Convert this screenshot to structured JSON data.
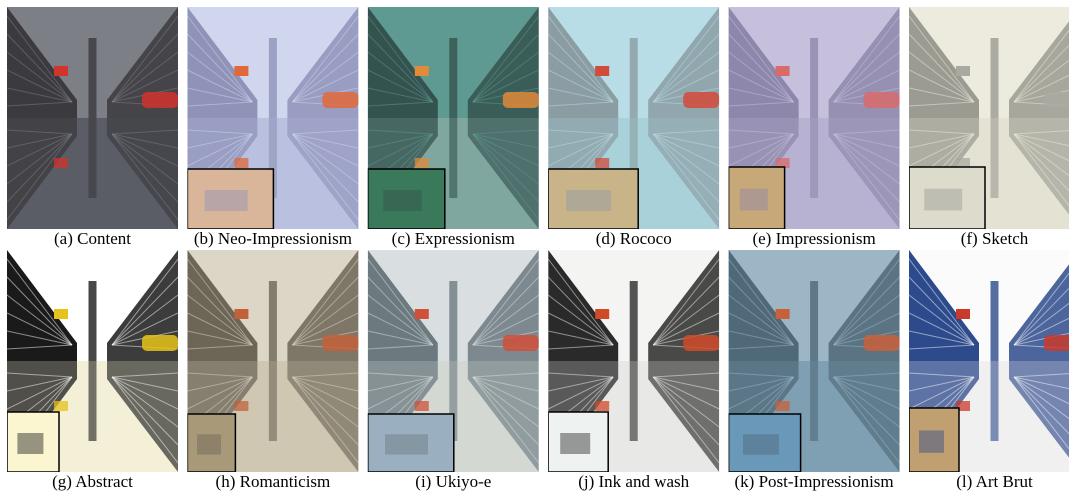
{
  "figure": {
    "panels": [
      {
        "caption": "(a) Content"
      },
      {
        "caption": "(b) Neo-Impressionism"
      },
      {
        "caption": "(c) Expressionism"
      },
      {
        "caption": "(d) Rococo"
      },
      {
        "caption": "(e) Impressionism"
      },
      {
        "caption": "(f) Sketch"
      },
      {
        "caption": "(g) Abstract"
      },
      {
        "caption": "(h) Romanticism"
      },
      {
        "caption": "(i) Ukiyo-e"
      },
      {
        "caption": "(j) Ink and wash"
      },
      {
        "caption": "(k) Post-Impressionism"
      },
      {
        "caption": "(l) Art Brut"
      }
    ]
  }
}
